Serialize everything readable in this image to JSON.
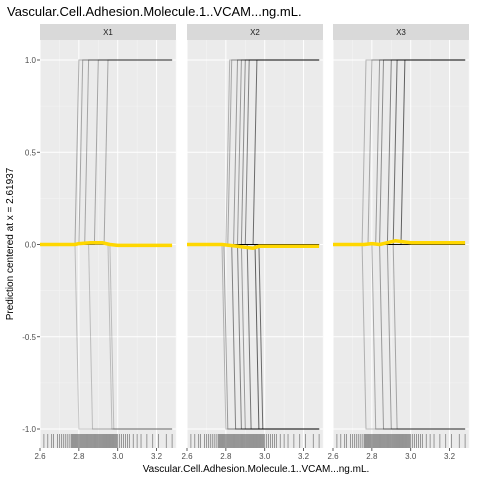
{
  "chart_data": {
    "type": "line",
    "title": "Vascular.Cell.Adhesion.Molecule.1..VCAM...ng.mL.",
    "xlabel": "Vascular.Cell.Adhesion.Molecule.1..VCAM...ng.mL.",
    "ylabel": "Prediction centered at x = 2.61937",
    "xlim": [
      2.6,
      3.3
    ],
    "ylim": [
      -1.0,
      1.0
    ],
    "x_ticks": [
      "2.6",
      "2.8",
      "3.0",
      "3.2"
    ],
    "y_ticks": [
      "-1.0",
      "-0.5",
      "0.0",
      "0.5",
      "1.0"
    ],
    "grid": true,
    "colors": {
      "panel_bg": "#ebebeb",
      "grid_major": "#ffffff",
      "strip_bg": "#d9d9d9",
      "ice_line": "#000000",
      "pdp_line": "#ffd700",
      "rug": "#000000"
    },
    "panels": [
      {
        "label": "X1",
        "ice_lines": [
          {
            "t": 2.8,
            "v": 1,
            "a": 0.3
          },
          {
            "t": 2.82,
            "v": 1,
            "a": 0.3
          },
          {
            "t": 2.85,
            "v": 1,
            "a": 0.3
          },
          {
            "t": 2.9,
            "v": 1,
            "a": 0.3
          },
          {
            "t": 2.95,
            "v": 1,
            "a": 0.3
          },
          {
            "t": 2.8,
            "v": -1,
            "a": 0.2
          },
          {
            "t": 2.87,
            "v": -1,
            "a": 0.2
          },
          {
            "t": 2.97,
            "v": -1,
            "a": 0.2
          },
          {
            "t": 2.98,
            "v": -1,
            "a": 0.2
          }
        ],
        "pdp": {
          "x": [
            2.6,
            2.78,
            2.8,
            2.86,
            2.92,
            2.96,
            3.0,
            3.2,
            3.28
          ],
          "y": [
            0.0,
            0.0,
            0.005,
            0.01,
            0.01,
            0.0,
            -0.005,
            -0.005,
            -0.005
          ]
        }
      },
      {
        "label": "X2",
        "ice_lines": [
          {
            "t": 2.82,
            "v": 1,
            "a": 0.25
          },
          {
            "t": 2.83,
            "v": 1,
            "a": 0.3
          },
          {
            "t": 2.86,
            "v": 1,
            "a": 0.35
          },
          {
            "t": 2.88,
            "v": 1,
            "a": 0.35
          },
          {
            "t": 2.9,
            "v": 1,
            "a": 0.4
          },
          {
            "t": 2.92,
            "v": 1,
            "a": 0.45
          },
          {
            "t": 2.96,
            "v": 1,
            "a": 0.55
          },
          {
            "t": 2.8,
            "v": -1,
            "a": 0.25
          },
          {
            "t": 2.81,
            "v": -1,
            "a": 0.35
          },
          {
            "t": 2.85,
            "v": -1,
            "a": 0.45
          },
          {
            "t": 2.88,
            "v": -1,
            "a": 0.45
          },
          {
            "t": 2.9,
            "v": -1,
            "a": 0.35
          },
          {
            "t": 2.93,
            "v": -1,
            "a": 0.5
          },
          {
            "t": 2.97,
            "v": -1,
            "a": 0.6
          },
          {
            "t": 2.99,
            "v": -1,
            "a": 0.55
          },
          {
            "t": 2.84,
            "v": 0,
            "a": 0.9
          },
          {
            "t": 2.9,
            "v": 0,
            "a": 0.7
          }
        ],
        "pdp": {
          "x": [
            2.6,
            2.78,
            2.82,
            2.86,
            2.9,
            2.94,
            2.97,
            3.0,
            3.2,
            3.28
          ],
          "y": [
            0.0,
            0.0,
            -0.005,
            -0.01,
            -0.015,
            -0.02,
            -0.01,
            -0.01,
            -0.01,
            -0.01
          ]
        }
      },
      {
        "label": "X3",
        "ice_lines": [
          {
            "t": 2.77,
            "v": 1,
            "a": 0.25
          },
          {
            "t": 2.8,
            "v": 1,
            "a": 0.3
          },
          {
            "t": 2.84,
            "v": 1,
            "a": 0.35
          },
          {
            "t": 2.86,
            "v": 1,
            "a": 0.4
          },
          {
            "t": 2.9,
            "v": 1,
            "a": 0.45
          },
          {
            "t": 2.93,
            "v": 1,
            "a": 0.55
          },
          {
            "t": 2.97,
            "v": 1,
            "a": 0.6
          },
          {
            "t": 2.77,
            "v": -1,
            "a": 0.25
          },
          {
            "t": 2.82,
            "v": -1,
            "a": 0.3
          },
          {
            "t": 2.86,
            "v": -1,
            "a": 0.35
          },
          {
            "t": 2.9,
            "v": -1,
            "a": 0.35
          },
          {
            "t": 2.93,
            "v": -1,
            "a": 0.3
          },
          {
            "t": 2.95,
            "v": 0,
            "a": 0.9
          }
        ],
        "pdp": {
          "x": [
            2.6,
            2.76,
            2.8,
            2.84,
            2.88,
            2.92,
            2.96,
            3.0,
            3.2,
            3.28
          ],
          "y": [
            0.0,
            0.0,
            0.005,
            0.0,
            0.01,
            0.02,
            0.015,
            0.01,
            0.01,
            0.01
          ]
        }
      }
    ],
    "rug_x": [
      2.62,
      2.64,
      2.66,
      2.67,
      2.69,
      2.7,
      2.71,
      2.72,
      2.73,
      2.74,
      2.75,
      2.76,
      2.765,
      2.77,
      2.775,
      2.78,
      2.785,
      2.79,
      2.795,
      2.8,
      2.805,
      2.81,
      2.815,
      2.82,
      2.825,
      2.83,
      2.835,
      2.84,
      2.845,
      2.85,
      2.855,
      2.86,
      2.865,
      2.87,
      2.875,
      2.88,
      2.885,
      2.89,
      2.895,
      2.9,
      2.905,
      2.91,
      2.915,
      2.92,
      2.925,
      2.93,
      2.935,
      2.94,
      2.945,
      2.95,
      2.955,
      2.96,
      2.965,
      2.97,
      2.975,
      2.98,
      2.985,
      2.99,
      2.995,
      3.0,
      3.01,
      3.02,
      3.03,
      3.04,
      3.05,
      3.06,
      3.08,
      3.1,
      3.12,
      3.15,
      3.18,
      3.21,
      3.25,
      3.28
    ]
  }
}
